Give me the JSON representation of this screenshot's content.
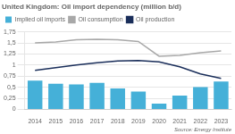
{
  "chart_data": {
    "type": "bar",
    "title": "United Kingdom: Oil import dependency (million b/d)",
    "categories": [
      "2014",
      "2015",
      "2016",
      "2017",
      "2018",
      "2019",
      "2020",
      "2021",
      "2022",
      "2023"
    ],
    "series": [
      {
        "name": "Implied oil imports",
        "type": "bar",
        "color": "#45b0d8",
        "values": [
          0.65,
          0.58,
          0.56,
          0.6,
          0.47,
          0.4,
          0.13,
          0.31,
          0.5,
          0.63
        ]
      },
      {
        "name": "Oil consumption",
        "type": "line",
        "color": "#a8a8a8",
        "values": [
          1.5,
          1.52,
          1.57,
          1.58,
          1.57,
          1.53,
          1.2,
          1.22,
          1.28,
          1.32
        ]
      },
      {
        "name": "Oil production",
        "type": "line",
        "color": "#1a2e5a",
        "values": [
          0.88,
          0.94,
          1.0,
          1.05,
          1.09,
          1.1,
          1.07,
          0.96,
          0.8,
          0.7
        ]
      }
    ],
    "ylim": [
      0,
      1.75
    ],
    "yticks": [
      0,
      {
        "value": 0.25,
        "label": "0,25"
      },
      {
        "value": 0.5,
        "label": "0,5"
      },
      {
        "value": 0.75,
        "label": "0,75"
      },
      1,
      {
        "value": 1.25,
        "label": "1,25"
      },
      {
        "value": 1.5,
        "label": "1,5"
      },
      {
        "value": 1.75,
        "label": "1,75"
      }
    ],
    "grid": true,
    "legend": "top",
    "annotations": [
      "Source: Energy Institute"
    ]
  }
}
